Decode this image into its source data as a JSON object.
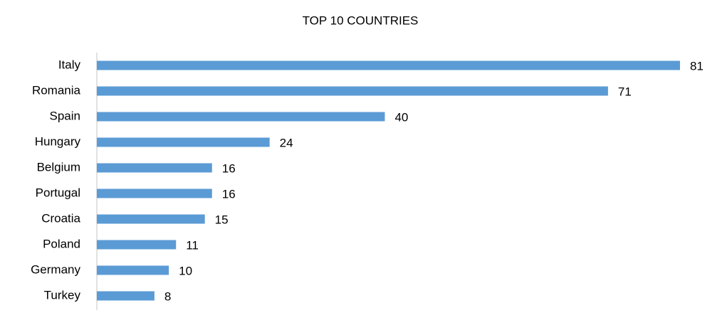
{
  "chart_data": {
    "type": "bar",
    "orientation": "horizontal",
    "title": "TOP 10 COUNTRIES",
    "categories": [
      "Italy",
      "Romania",
      "Spain",
      "Hungary",
      "Belgium",
      "Portugal",
      "Croatia",
      "Poland",
      "Germany",
      "Turkey"
    ],
    "values": [
      81,
      71,
      40,
      24,
      16,
      16,
      15,
      11,
      10,
      8
    ],
    "color": "#5b9bd5"
  }
}
